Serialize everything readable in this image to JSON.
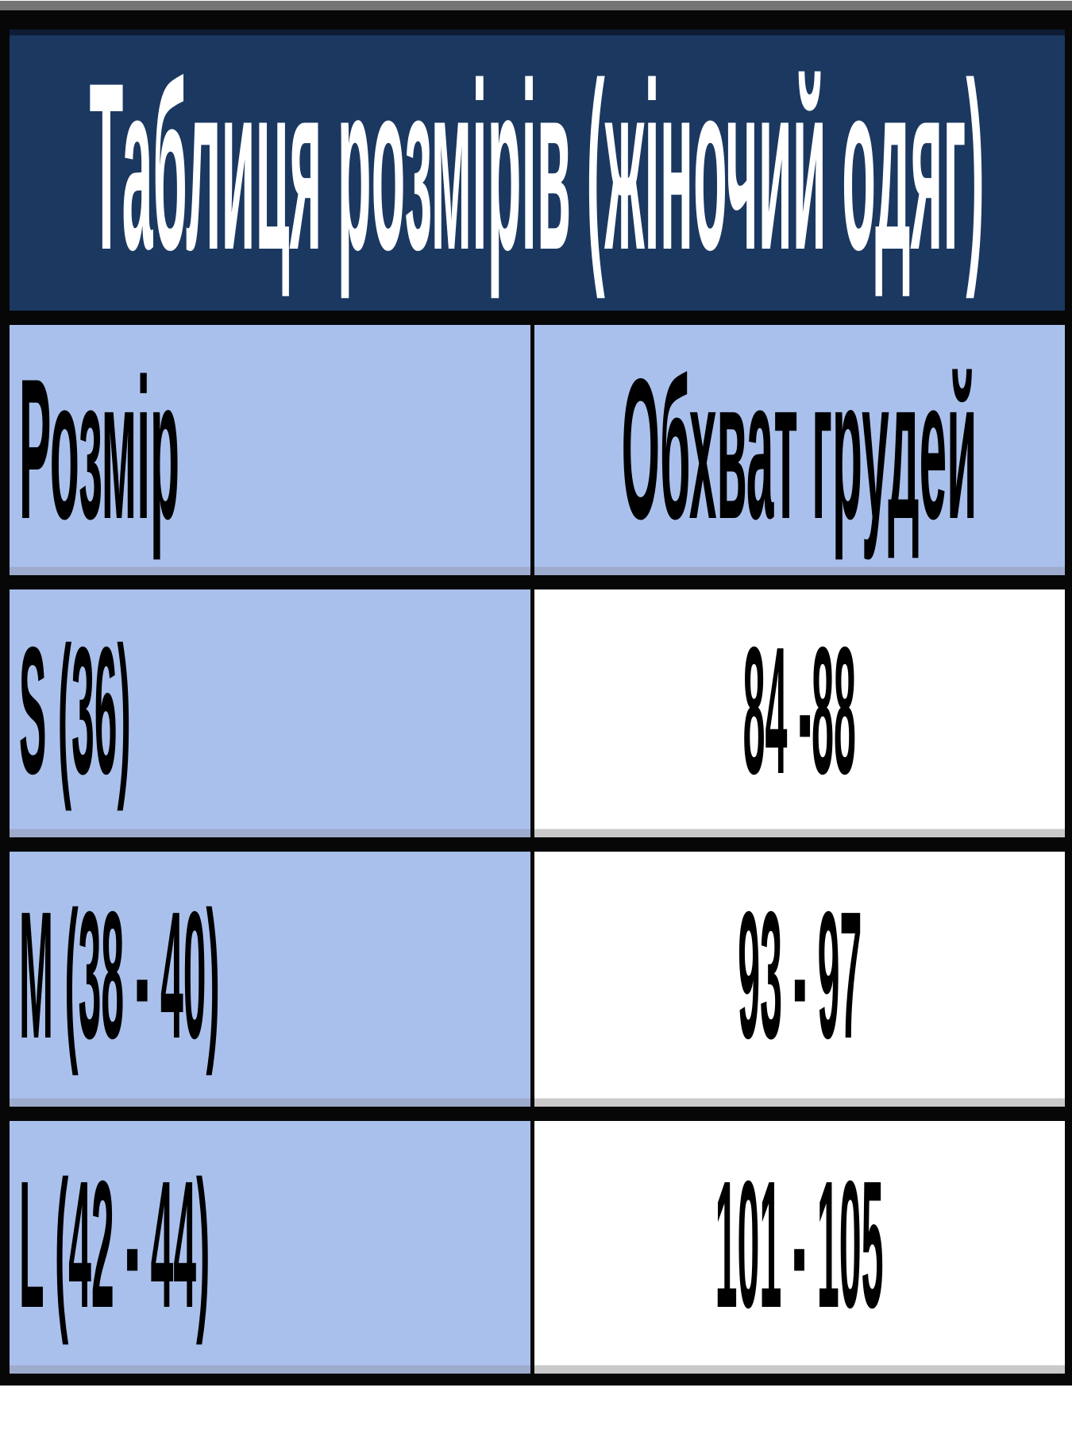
{
  "title": "Таблиця розмірів (жіночий одяг)",
  "columns": {
    "size": "Розмір",
    "chest": "Обхват грудей"
  },
  "rows": [
    {
      "size": "S (36)",
      "chest": "84 -88"
    },
    {
      "size": "M (38 - 40)",
      "chest": "93 - 97"
    },
    {
      "size": "L (42 - 44)",
      "chest": "101 - 105"
    }
  ],
  "colors": {
    "title_bg": "#1b3861",
    "title_text": "#ffffff",
    "cell_blue": "#aac0ec",
    "cell_white": "#ffffff",
    "border_black": "#070707",
    "top_strip_gray": "#757575",
    "body_text": "#000000"
  }
}
